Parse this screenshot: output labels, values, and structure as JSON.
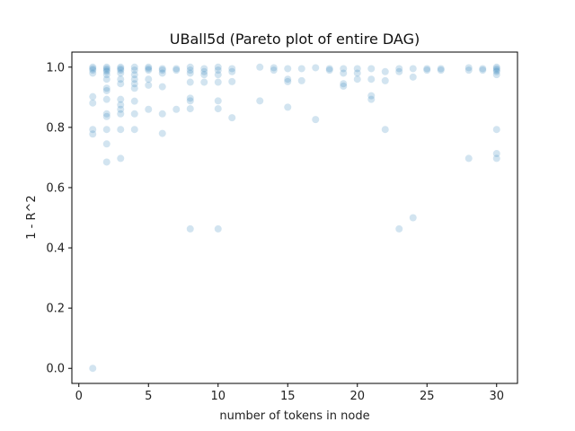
{
  "chart_data": {
    "type": "scatter",
    "title": "UBall5d (Pareto plot of entire DAG)",
    "xlabel": "number of tokens in node",
    "ylabel": "1 - R^2",
    "xlim": [
      -0.5,
      31.5
    ],
    "ylim": [
      -0.05,
      1.05
    ],
    "xticks": [
      0,
      5,
      10,
      15,
      20,
      25,
      30
    ],
    "yticks": [
      0.0,
      0.2,
      0.4,
      0.6,
      0.8,
      1.0
    ],
    "grid": false,
    "legend": "none",
    "point_color": "#1f77b4",
    "point_alpha": 0.2,
    "points": [
      [
        1,
        0.0
      ],
      [
        1,
        0.778
      ],
      [
        1,
        0.793
      ],
      [
        1,
        0.881
      ],
      [
        1,
        0.902
      ],
      [
        1,
        0.98
      ],
      [
        1,
        0.99
      ],
      [
        1,
        0.995
      ],
      [
        1,
        1.0
      ],
      [
        2,
        0.685
      ],
      [
        2,
        0.745
      ],
      [
        2,
        0.793
      ],
      [
        2,
        0.836
      ],
      [
        2,
        0.845
      ],
      [
        2,
        0.893
      ],
      [
        2,
        0.922
      ],
      [
        2,
        0.93
      ],
      [
        2,
        0.96
      ],
      [
        2,
        0.975
      ],
      [
        2,
        0.985
      ],
      [
        2,
        0.99
      ],
      [
        2,
        0.995
      ],
      [
        2,
        1.0
      ],
      [
        3,
        0.697
      ],
      [
        3,
        0.793
      ],
      [
        3,
        0.845
      ],
      [
        3,
        0.86
      ],
      [
        3,
        0.875
      ],
      [
        3,
        0.893
      ],
      [
        3,
        0.945
      ],
      [
        3,
        0.96
      ],
      [
        3,
        0.98
      ],
      [
        3,
        0.99
      ],
      [
        3,
        0.995
      ],
      [
        3,
        1.0
      ],
      [
        4,
        0.793
      ],
      [
        4,
        0.845
      ],
      [
        4,
        0.887
      ],
      [
        4,
        0.93
      ],
      [
        4,
        0.945
      ],
      [
        4,
        0.96
      ],
      [
        4,
        0.975
      ],
      [
        4,
        0.99
      ],
      [
        4,
        1.0
      ],
      [
        5,
        0.86
      ],
      [
        5,
        0.94
      ],
      [
        5,
        0.96
      ],
      [
        5,
        0.99
      ],
      [
        5,
        0.995
      ],
      [
        5,
        1.0
      ],
      [
        6,
        0.78
      ],
      [
        6,
        0.845
      ],
      [
        6,
        0.935
      ],
      [
        6,
        0.98
      ],
      [
        6,
        0.99
      ],
      [
        6,
        0.995
      ],
      [
        7,
        0.86
      ],
      [
        7,
        0.99
      ],
      [
        7,
        0.995
      ],
      [
        8,
        0.463
      ],
      [
        8,
        0.862
      ],
      [
        8,
        0.888
      ],
      [
        8,
        0.897
      ],
      [
        8,
        0.95
      ],
      [
        8,
        0.98
      ],
      [
        8,
        0.99
      ],
      [
        8,
        1.0
      ],
      [
        9,
        0.95
      ],
      [
        9,
        0.975
      ],
      [
        9,
        0.985
      ],
      [
        9,
        0.995
      ],
      [
        10,
        0.463
      ],
      [
        10,
        0.862
      ],
      [
        10,
        0.888
      ],
      [
        10,
        0.95
      ],
      [
        10,
        0.975
      ],
      [
        10,
        0.99
      ],
      [
        10,
        1.0
      ],
      [
        11,
        0.832
      ],
      [
        11,
        0.952
      ],
      [
        11,
        0.985
      ],
      [
        11,
        0.995
      ],
      [
        13,
        0.888
      ],
      [
        13,
        1.0
      ],
      [
        14,
        0.99
      ],
      [
        14,
        0.998
      ],
      [
        15,
        0.867
      ],
      [
        15,
        0.952
      ],
      [
        15,
        0.96
      ],
      [
        15,
        0.995
      ],
      [
        16,
        0.955
      ],
      [
        16,
        0.995
      ],
      [
        17,
        0.826
      ],
      [
        17,
        0.998
      ],
      [
        18,
        0.99
      ],
      [
        18,
        0.995
      ],
      [
        19,
        0.937
      ],
      [
        19,
        0.945
      ],
      [
        19,
        0.98
      ],
      [
        19,
        0.995
      ],
      [
        20,
        0.96
      ],
      [
        20,
        0.98
      ],
      [
        20,
        0.995
      ],
      [
        21,
        0.893
      ],
      [
        21,
        0.905
      ],
      [
        21,
        0.96
      ],
      [
        21,
        0.995
      ],
      [
        22,
        0.793
      ],
      [
        22,
        0.955
      ],
      [
        22,
        0.985
      ],
      [
        23,
        0.463
      ],
      [
        23,
        0.985
      ],
      [
        23,
        0.995
      ],
      [
        24,
        0.5
      ],
      [
        24,
        0.967
      ],
      [
        24,
        0.995
      ],
      [
        25,
        0.99
      ],
      [
        25,
        0.995
      ],
      [
        26,
        0.99
      ],
      [
        26,
        0.995
      ],
      [
        28,
        0.697
      ],
      [
        28,
        0.99
      ],
      [
        28,
        0.998
      ],
      [
        29,
        0.99
      ],
      [
        29,
        0.995
      ],
      [
        30,
        0.697
      ],
      [
        30,
        0.713
      ],
      [
        30,
        0.793
      ],
      [
        30,
        0.975
      ],
      [
        30,
        0.985
      ],
      [
        30,
        0.99
      ],
      [
        30,
        0.995
      ],
      [
        30,
        1.0
      ]
    ]
  }
}
